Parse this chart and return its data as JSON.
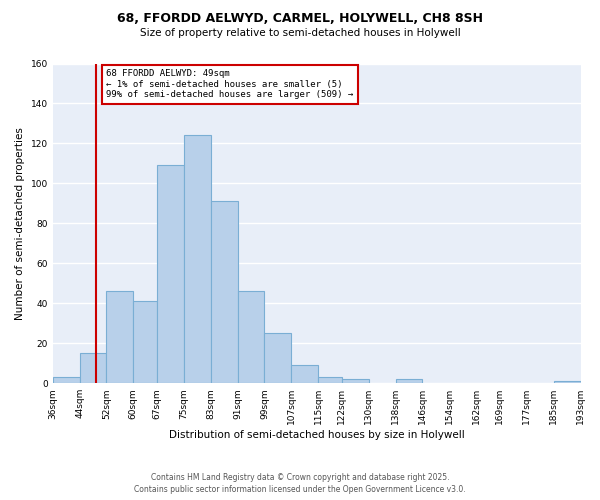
{
  "title": "68, FFORDD AELWYD, CARMEL, HOLYWELL, CH8 8SH",
  "subtitle": "Size of property relative to semi-detached houses in Holywell",
  "xlabel": "Distribution of semi-detached houses by size in Holywell",
  "ylabel": "Number of semi-detached properties",
  "bar_color": "#b8d0ea",
  "bar_edge_color": "#7aaed4",
  "background_color": "#e8eef8",
  "grid_color": "#ffffff",
  "vline_x": 49,
  "vline_color": "#cc0000",
  "annotation_text": "68 FFORDD AELWYD: 49sqm\n← 1% of semi-detached houses are smaller (5)\n99% of semi-detached houses are larger (509) →",
  "annotation_box_color": "white",
  "annotation_box_edge": "#cc0000",
  "footnote1": "Contains HM Land Registry data © Crown copyright and database right 2025.",
  "footnote2": "Contains public sector information licensed under the Open Government Licence v3.0.",
  "bin_edges": [
    36,
    44,
    52,
    60,
    67,
    75,
    83,
    91,
    99,
    107,
    115,
    122,
    130,
    138,
    146,
    154,
    162,
    169,
    177,
    185,
    193
  ],
  "bin_counts": [
    3,
    15,
    46,
    41,
    109,
    124,
    91,
    46,
    25,
    9,
    3,
    2,
    0,
    2,
    0,
    0,
    0,
    0,
    0,
    1
  ],
  "xlim": [
    36,
    193
  ],
  "ylim": [
    0,
    160
  ],
  "yticks": [
    0,
    20,
    40,
    60,
    80,
    100,
    120,
    140,
    160
  ],
  "title_fontsize": 9,
  "subtitle_fontsize": 7.5,
  "axis_label_fontsize": 7.5,
  "tick_fontsize": 6.5,
  "footnote_fontsize": 5.5
}
